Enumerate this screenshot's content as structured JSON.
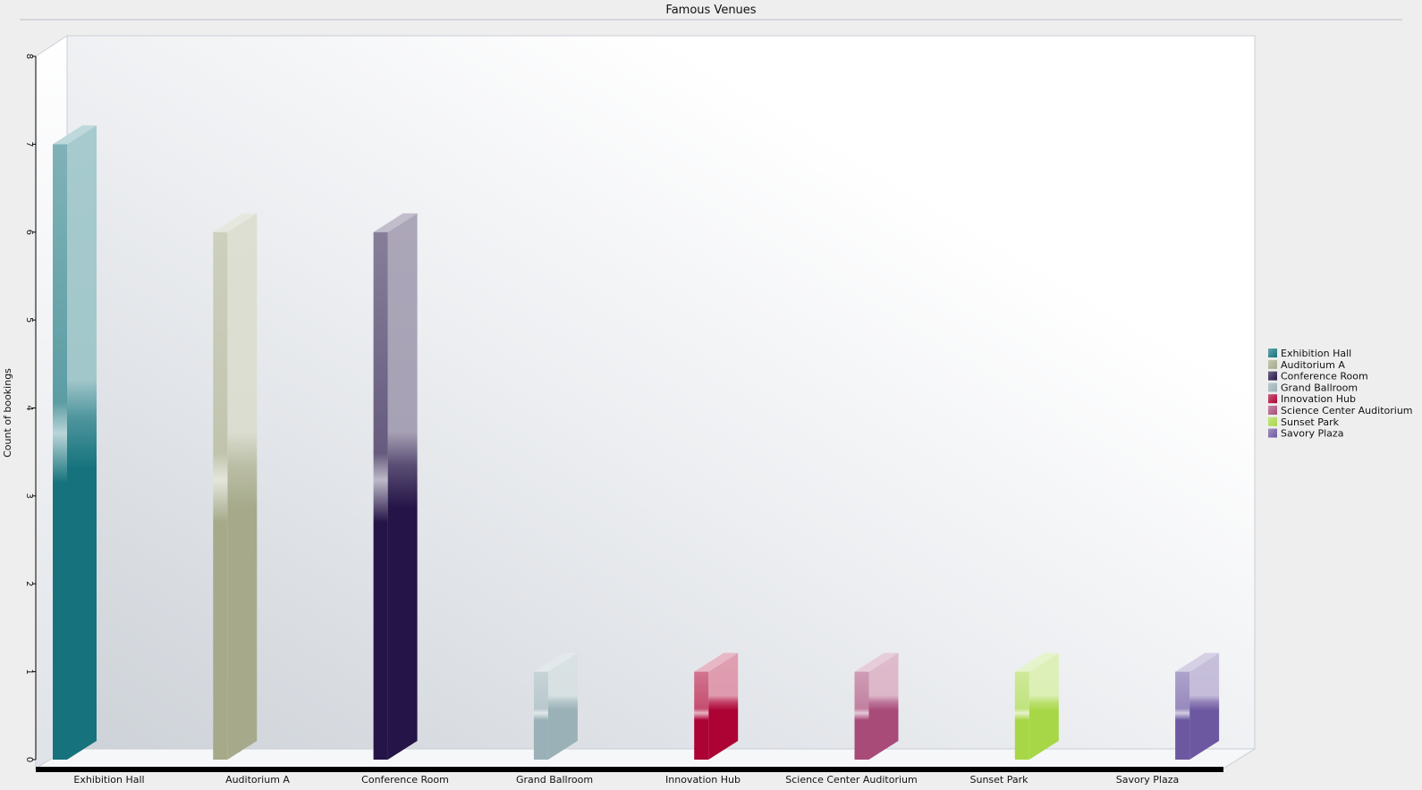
{
  "chart_data": {
    "type": "bar",
    "title": "Famous Venues",
    "xlabel": "",
    "ylabel": "Count of bookings",
    "ylim": [
      0,
      8
    ],
    "yticks": [
      "0",
      "1",
      "2",
      "3",
      "4",
      "5",
      "6",
      "7",
      "8"
    ],
    "categories": [
      "Exhibition Hall",
      "Auditorium A",
      "Conference Room",
      "Grand Ballroom",
      "Innovation Hub",
      "Science Center Auditorium",
      "Sunset Park",
      "Savory Plaza"
    ],
    "values": [
      7,
      6,
      6,
      1,
      1,
      1,
      1,
      1
    ],
    "colors": [
      "#16737d",
      "#a6aa8a",
      "#241447",
      "#9ab1b7",
      "#ad0234",
      "#a84b79",
      "#a7d746",
      "#6c58a0"
    ],
    "legend": {
      "position": "right",
      "entries": [
        "Exhibition Hall",
        "Auditorium A",
        "Conference Room",
        "Grand Ballroom",
        "Innovation Hub",
        "Science Center Auditorium",
        "Sunset Park",
        "Savory Plaza"
      ]
    },
    "grid": false,
    "style": "3d"
  }
}
